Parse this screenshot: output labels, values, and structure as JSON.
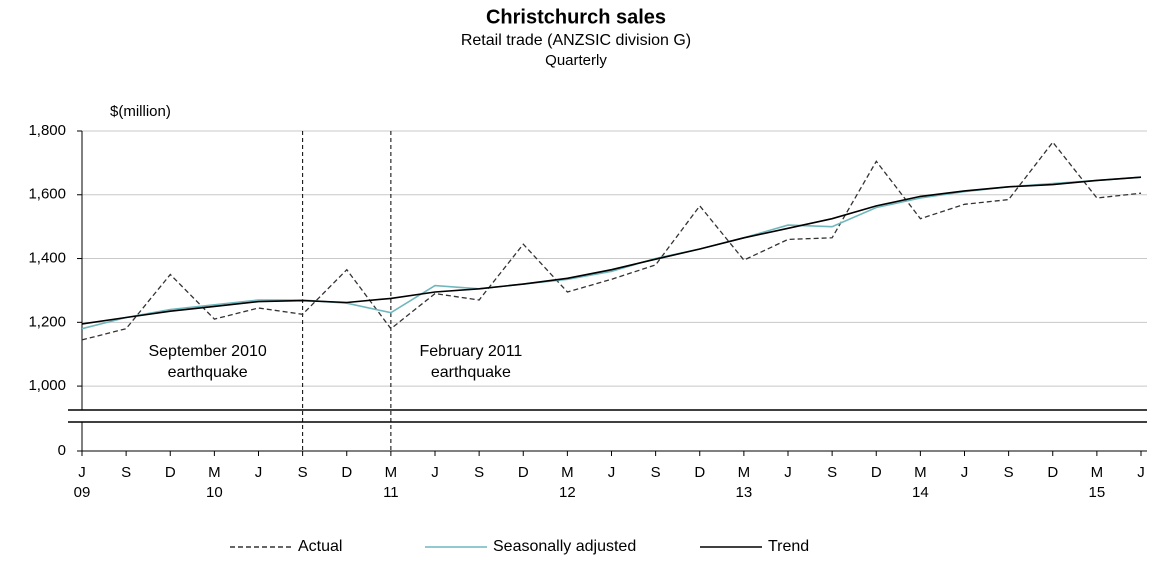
{
  "chart_data": {
    "type": "line",
    "title": "Christchurch sales",
    "subtitle": [
      "Retail trade (ANZSIC  division  G)",
      "Quarterly"
    ],
    "y_axis_label": "$(million)",
    "categories": [
      "J",
      "S",
      "D",
      "M",
      "J",
      "S",
      "D",
      "M",
      "J",
      "S",
      "D",
      "M",
      "J",
      "S",
      "D",
      "M",
      "J",
      "S",
      "D",
      "M",
      "J",
      "S",
      "D",
      "M",
      "J"
    ],
    "year_labels": [
      "09",
      null,
      null,
      "10",
      null,
      null,
      null,
      "11",
      null,
      null,
      null,
      "12",
      null,
      null,
      null,
      "13",
      null,
      null,
      null,
      "14",
      null,
      null,
      null,
      "15",
      null
    ],
    "series": [
      {
        "name": "Actual",
        "color": "#333333",
        "dash": true,
        "values": [
          1145,
          1180,
          1350,
          1210,
          1245,
          1225,
          1365,
          1180,
          1290,
          1270,
          1445,
          1295,
          1335,
          1380,
          1565,
          1395,
          1460,
          1465,
          1705,
          1525,
          1570,
          1585,
          1765,
          1590,
          1605
        ]
      },
      {
        "name": "Seasonally adjusted",
        "color": "#6fb7bd",
        "dash": false,
        "values": [
          1180,
          1215,
          1240,
          1255,
          1270,
          1270,
          1260,
          1230,
          1315,
          1305,
          1320,
          1335,
          1360,
          1400,
          1430,
          1465,
          1505,
          1500,
          1560,
          1590,
          1610,
          1625,
          1635,
          1645,
          1655
        ]
      },
      {
        "name": "Trend",
        "color": "#000000",
        "dash": false,
        "values": [
          1195,
          1215,
          1235,
          1250,
          1265,
          1268,
          1262,
          1275,
          1295,
          1305,
          1320,
          1338,
          1365,
          1398,
          1430,
          1465,
          1495,
          1525,
          1565,
          1595,
          1612,
          1625,
          1632,
          1645,
          1655
        ]
      }
    ],
    "ylim": [
      925,
      1800
    ],
    "yticks": [
      0,
      {
        "value": 1000,
        "label": "1,000"
      },
      {
        "value": 1200,
        "label": "1,200"
      },
      {
        "value": 1400,
        "label": "1,400"
      },
      {
        "value": 1600,
        "label": "1,600"
      },
      {
        "value": 1800,
        "label": "1,800"
      }
    ],
    "grid": true,
    "annotations": [
      {
        "x_index": 5,
        "text": [
          "September 2010",
          "earthquake"
        ]
      },
      {
        "x_index": 7,
        "text": [
          "February 2011",
          "earthquake"
        ]
      }
    ],
    "legend": "bottom"
  }
}
